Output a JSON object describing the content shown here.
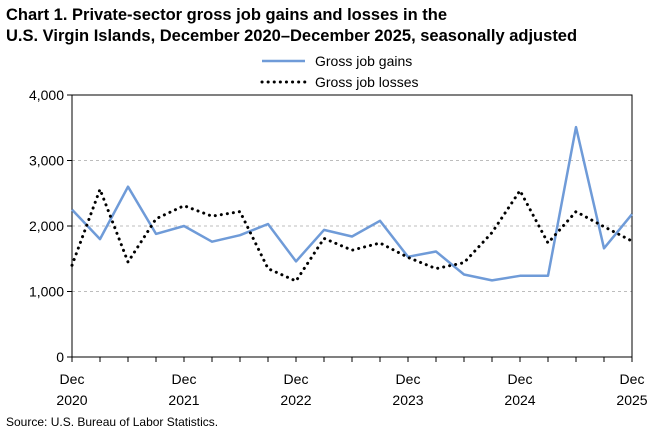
{
  "chart_data": {
    "type": "line",
    "title_line1": "Chart 1. Private-sector gross job gains and losses in the",
    "title_line2": "U.S. Virgin Islands, December 2020–December 2025, seasonally adjusted",
    "source": "Source: U.S. Bureau of Labor Statistics.",
    "ylim": [
      0,
      4000
    ],
    "yticks": [
      "0",
      "1,000",
      "2,000",
      "3,000",
      "4,000"
    ],
    "ytick_values": [
      0,
      1000,
      2000,
      3000,
      4000
    ],
    "xticks": [
      {
        "month": "Dec",
        "year": "2020",
        "index": 0
      },
      {
        "month": "Dec",
        "year": "2021",
        "index": 4
      },
      {
        "month": "Dec",
        "year": "2022",
        "index": 8
      },
      {
        "month": "Dec",
        "year": "2023",
        "index": 12
      },
      {
        "month": "Dec",
        "year": "2024",
        "index": 16
      },
      {
        "month": "Dec",
        "year": "2025",
        "index": 20
      }
    ],
    "x": [
      "Dec 2020",
      "Mar 2021",
      "Jun 2021",
      "Sep 2021",
      "Dec 2021",
      "Mar 2022",
      "Jun 2022",
      "Sep 2022",
      "Dec 2022",
      "Mar 2023",
      "Jun 2023",
      "Sep 2023",
      "Dec 2023",
      "Mar 2024",
      "Jun 2024",
      "Sep 2024",
      "Dec 2024",
      "Mar 2025",
      "Jun 2025",
      "Sep 2025",
      "Dec 2025"
    ],
    "series": [
      {
        "name": "Gross job gains",
        "color": "#6f9bd8",
        "style": "solid",
        "values": [
          2250,
          1800,
          2600,
          1880,
          2000,
          1760,
          1860,
          2030,
          1460,
          1940,
          1840,
          2080,
          1530,
          1610,
          1260,
          1170,
          1240,
          1240,
          3510,
          1660,
          2180
        ]
      },
      {
        "name": "Gross job losses",
        "color": "#000000",
        "style": "dotted",
        "values": [
          1400,
          2560,
          1450,
          2110,
          2310,
          2150,
          2220,
          1350,
          1160,
          1810,
          1630,
          1740,
          1520,
          1350,
          1440,
          1900,
          2540,
          1740,
          2220,
          1990,
          1770
        ]
      }
    ],
    "grid": true,
    "legend": "top-center"
  }
}
